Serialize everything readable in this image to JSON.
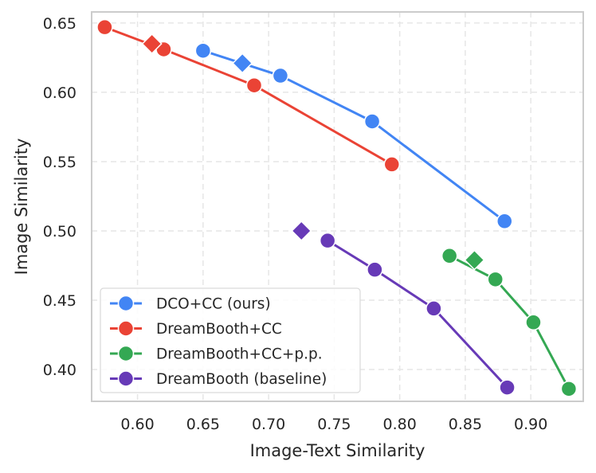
{
  "chart_data": {
    "type": "line",
    "xlabel": "Image-Text Similarity",
    "ylabel": "Image Similarity",
    "xlim": [
      0.565,
      0.94
    ],
    "ylim": [
      0.377,
      0.658
    ],
    "xticks": [
      0.6,
      0.65,
      0.7,
      0.75,
      0.8,
      0.85,
      0.9
    ],
    "xtick_labels": [
      "0.60",
      "0.65",
      "0.70",
      "0.75",
      "0.80",
      "0.85",
      "0.90"
    ],
    "yticks": [
      0.4,
      0.45,
      0.5,
      0.55,
      0.6,
      0.65
    ],
    "ytick_labels": [
      "0.40",
      "0.45",
      "0.50",
      "0.55",
      "0.60",
      "0.65"
    ],
    "grid": true,
    "legend_position": "lower-left",
    "series": [
      {
        "name": "DCO+CC (ours)",
        "color": "#4285f4",
        "points": [
          [
            0.65,
            0.63
          ],
          [
            0.709,
            0.612
          ],
          [
            0.779,
            0.579
          ],
          [
            0.88,
            0.507
          ]
        ],
        "diamond": [
          0.68,
          0.621
        ]
      },
      {
        "name": "DreamBooth+CC",
        "color": "#ea4335",
        "points": [
          [
            0.575,
            0.647
          ],
          [
            0.62,
            0.631
          ],
          [
            0.689,
            0.605
          ],
          [
            0.794,
            0.548
          ]
        ],
        "diamond": [
          0.611,
          0.635
        ]
      },
      {
        "name": "DreamBooth+CC+p.p.",
        "color": "#34a853",
        "points": [
          [
            0.838,
            0.482
          ],
          [
            0.873,
            0.465
          ],
          [
            0.902,
            0.434
          ],
          [
            0.929,
            0.386
          ]
        ],
        "diamond": [
          0.857,
          0.479
        ]
      },
      {
        "name": "DreamBooth (baseline)",
        "color": "#673ab7",
        "points": [
          [
            0.745,
            0.493
          ],
          [
            0.781,
            0.472
          ],
          [
            0.826,
            0.444
          ],
          [
            0.882,
            0.387
          ]
        ],
        "diamond": [
          0.725,
          0.5
        ]
      }
    ]
  }
}
